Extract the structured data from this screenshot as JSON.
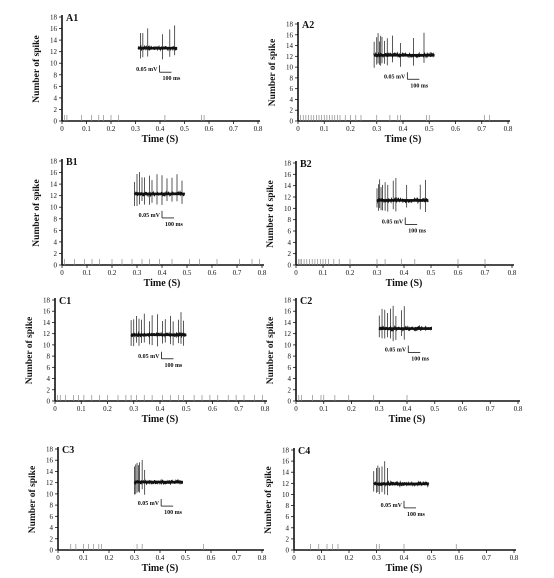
{
  "figure": {
    "background": "#ffffff",
    "ink": "#111111",
    "raster_color": "#888888"
  },
  "chart_data": [
    {
      "type": "raster",
      "panel": "A1",
      "title": "",
      "xlabel": "Time (S)",
      "ylabel": "Number of spike",
      "xlim": [
        0,
        0.8
      ],
      "ylim": [
        0,
        18
      ],
      "x_ticks": [
        "0",
        "0.1",
        "0.2",
        "0.3",
        "0.4",
        "0.5",
        "0.6",
        "0.7",
        "0.8"
      ],
      "y_ticks": [
        "0",
        "2",
        "4",
        "6",
        "8",
        "10",
        "12",
        "14",
        "16",
        "18"
      ],
      "spike_times": [
        0.01,
        0.02,
        0.08,
        0.12,
        0.15,
        0.17,
        0.2,
        0.23,
        0.42,
        0.57,
        0.58
      ],
      "trace": {
        "start": 0.31,
        "end": 0.47,
        "baseline": 12.6,
        "spikes": [
          0.32,
          0.33,
          0.35,
          0.41,
          0.44,
          0.46
        ]
      },
      "scale_bar": {
        "amplitude": "0.05 mV",
        "duration": "100 ms"
      }
    },
    {
      "type": "raster",
      "panel": "A2",
      "title": "",
      "xlabel": "Time (S)",
      "ylabel": "Number of spike",
      "xlim": [
        0,
        0.8
      ],
      "ylim": [
        0,
        18
      ],
      "x_ticks": [
        "0",
        "0.1",
        "0.2",
        "0.3",
        "0.4",
        "0.5",
        "0.6",
        "0.7",
        "0.8"
      ],
      "y_ticks": [
        "0",
        "2",
        "4",
        "6",
        "8",
        "10",
        "12",
        "14",
        "16",
        "18"
      ],
      "spike_times": [
        0.01,
        0.02,
        0.03,
        0.04,
        0.05,
        0.06,
        0.07,
        0.08,
        0.09,
        0.1,
        0.11,
        0.12,
        0.13,
        0.14,
        0.15,
        0.16,
        0.18,
        0.2,
        0.22,
        0.24,
        0.3,
        0.35,
        0.38,
        0.39,
        0.49,
        0.5,
        0.71,
        0.73
      ],
      "trace": {
        "start": 0.29,
        "end": 0.52,
        "baseline": 12.2,
        "spikes": [
          0.29,
          0.3,
          0.305,
          0.31,
          0.315,
          0.32,
          0.33,
          0.34,
          0.36,
          0.39,
          0.44,
          0.48
        ]
      },
      "scale_bar": {
        "amplitude": "0.05 mV",
        "duration": "100 ms"
      }
    },
    {
      "type": "raster",
      "panel": "B1",
      "title": "",
      "xlabel": "Time (S)",
      "ylabel": "Number of spike",
      "xlim": [
        0,
        0.8
      ],
      "ylim": [
        0,
        18
      ],
      "x_ticks": [
        "0",
        "0.1",
        "0.2",
        "0.3",
        "0.4",
        "0.5",
        "0.6",
        "0.7",
        "0.8"
      ],
      "y_ticks": [
        "0",
        "2",
        "4",
        "6",
        "8",
        "10",
        "12",
        "14",
        "16",
        "18"
      ],
      "spike_times": [
        0.01,
        0.05,
        0.09,
        0.12,
        0.15,
        0.2,
        0.24,
        0.28,
        0.32,
        0.35,
        0.39,
        0.44,
        0.51,
        0.55,
        0.62,
        0.71,
        0.76,
        0.79
      ],
      "trace": {
        "start": 0.29,
        "end": 0.49,
        "baseline": 12.3,
        "spikes": [
          0.29,
          0.3,
          0.31,
          0.32,
          0.33,
          0.35,
          0.36,
          0.38,
          0.4,
          0.42,
          0.44,
          0.46,
          0.48
        ]
      },
      "scale_bar": {
        "amplitude": "0.05 mV",
        "duration": "100 ms"
      }
    },
    {
      "type": "raster",
      "panel": "B2",
      "title": "",
      "xlabel": "Time (S)",
      "ylabel": "Number of spike",
      "xlim": [
        0,
        0.8
      ],
      "ylim": [
        0,
        18
      ],
      "x_ticks": [
        "0",
        "0.1",
        "0.2",
        "0.3",
        "0.4",
        "0.5",
        "0.6",
        "0.7",
        "0.8"
      ],
      "y_ticks": [
        "0",
        "2",
        "4",
        "6",
        "8",
        "10",
        "12",
        "14",
        "16",
        "18"
      ],
      "spike_times": [
        0.01,
        0.015,
        0.02,
        0.03,
        0.04,
        0.05,
        0.06,
        0.07,
        0.08,
        0.09,
        0.1,
        0.11,
        0.12,
        0.14,
        0.16,
        0.2,
        0.3,
        0.33,
        0.39,
        0.44,
        0.6,
        0.7
      ],
      "trace": {
        "start": 0.3,
        "end": 0.49,
        "baseline": 11.4,
        "spikes": [
          0.3,
          0.305,
          0.31,
          0.315,
          0.32,
          0.33,
          0.34,
          0.36,
          0.37,
          0.41,
          0.46,
          0.48
        ]
      },
      "scale_bar": {
        "amplitude": "0.05 mV",
        "duration": "100 ms"
      }
    },
    {
      "type": "raster",
      "panel": "C1",
      "title": "",
      "xlabel": "Time (S)",
      "ylabel": "Number of spike",
      "xlim": [
        0,
        0.8
      ],
      "ylim": [
        0,
        18
      ],
      "x_ticks": [
        "0",
        "0.1",
        "0.2",
        "0.3",
        "0.4",
        "0.5",
        "0.6",
        "0.7",
        "0.8"
      ],
      "y_ticks": [
        "0",
        "2",
        "4",
        "6",
        "8",
        "10",
        "12",
        "14",
        "16",
        "18"
      ],
      "spike_times": [
        0.01,
        0.02,
        0.04,
        0.07,
        0.09,
        0.11,
        0.14,
        0.17,
        0.2,
        0.24,
        0.27,
        0.29,
        0.31,
        0.34,
        0.37,
        0.41,
        0.44,
        0.47,
        0.49,
        0.53,
        0.56,
        0.59,
        0.62,
        0.66,
        0.69,
        0.72,
        0.76,
        0.79
      ],
      "trace": {
        "start": 0.29,
        "end": 0.5,
        "baseline": 11.8,
        "spikes": [
          0.29,
          0.3,
          0.31,
          0.32,
          0.33,
          0.34,
          0.36,
          0.37,
          0.39,
          0.41,
          0.42,
          0.44,
          0.45,
          0.47,
          0.48,
          0.49
        ]
      },
      "scale_bar": {
        "amplitude": "0.05 mV",
        "duration": "100 ms"
      }
    },
    {
      "type": "raster",
      "panel": "C2",
      "title": "",
      "xlabel": "Time (S)",
      "ylabel": "Number of spike",
      "xlim": [
        0,
        0.8
      ],
      "ylim": [
        0,
        18
      ],
      "x_ticks": [
        "0",
        "0.1",
        "0.2",
        "0.3",
        "0.4",
        "0.5",
        "0.6",
        "0.7",
        "0.8"
      ],
      "y_ticks": [
        "0",
        "2",
        "4",
        "6",
        "8",
        "10",
        "12",
        "14",
        "16",
        "18"
      ],
      "spike_times": [
        0.01,
        0.02,
        0.06,
        0.09,
        0.1,
        0.14,
        0.19,
        0.28,
        0.4
      ],
      "trace": {
        "start": 0.3,
        "end": 0.49,
        "baseline": 12.9,
        "spikes": [
          0.3,
          0.31,
          0.32,
          0.33,
          0.34,
          0.35,
          0.36,
          0.38,
          0.39
        ]
      },
      "scale_bar": {
        "amplitude": "0.05 mV",
        "duration": "100 ms"
      }
    },
    {
      "type": "raster",
      "panel": "C3",
      "title": "",
      "xlabel": "Time (S)",
      "ylabel": "Number of spike",
      "xlim": [
        0,
        0.8
      ],
      "ylim": [
        0,
        18
      ],
      "x_ticks": [
        "0",
        "0.1",
        "0.2",
        "0.3",
        "0.4",
        "0.5",
        "0.6",
        "0.7",
        "0.8"
      ],
      "y_ticks": [
        "0",
        "2",
        "4",
        "6",
        "8",
        "10",
        "12",
        "14",
        "16",
        "18"
      ],
      "spike_times": [
        0.05,
        0.07,
        0.1,
        0.12,
        0.14,
        0.16,
        0.17,
        0.31,
        0.33,
        0.57
      ],
      "trace": {
        "start": 0.3,
        "end": 0.49,
        "baseline": 12.1,
        "spikes": [
          0.3,
          0.305,
          0.31,
          0.315,
          0.32,
          0.33,
          0.34
        ]
      },
      "scale_bar": {
        "amplitude": "0.05 mV",
        "duration": "100 ms"
      }
    },
    {
      "type": "raster",
      "panel": "C4",
      "title": "",
      "xlabel": "Time (S)",
      "ylabel": "Number of spike",
      "xlim": [
        0,
        0.8
      ],
      "ylim": [
        0,
        18
      ],
      "x_ticks": [
        "0",
        "0.1",
        "0.2",
        "0.3",
        "0.4",
        "0.5",
        "0.6",
        "0.7",
        "0.8"
      ],
      "y_ticks": [
        "0",
        "2",
        "4",
        "6",
        "8",
        "10",
        "12",
        "14",
        "16",
        "18"
      ],
      "spike_times": [
        0.06,
        0.09,
        0.12,
        0.14,
        0.16,
        0.3,
        0.31,
        0.4,
        0.59
      ],
      "trace": {
        "start": 0.29,
        "end": 0.49,
        "baseline": 11.9,
        "spikes": [
          0.29,
          0.3,
          0.305,
          0.31,
          0.32,
          0.33,
          0.34
        ]
      },
      "scale_bar": {
        "amplitude": "0.05 mV",
        "duration": "100 ms"
      }
    }
  ]
}
